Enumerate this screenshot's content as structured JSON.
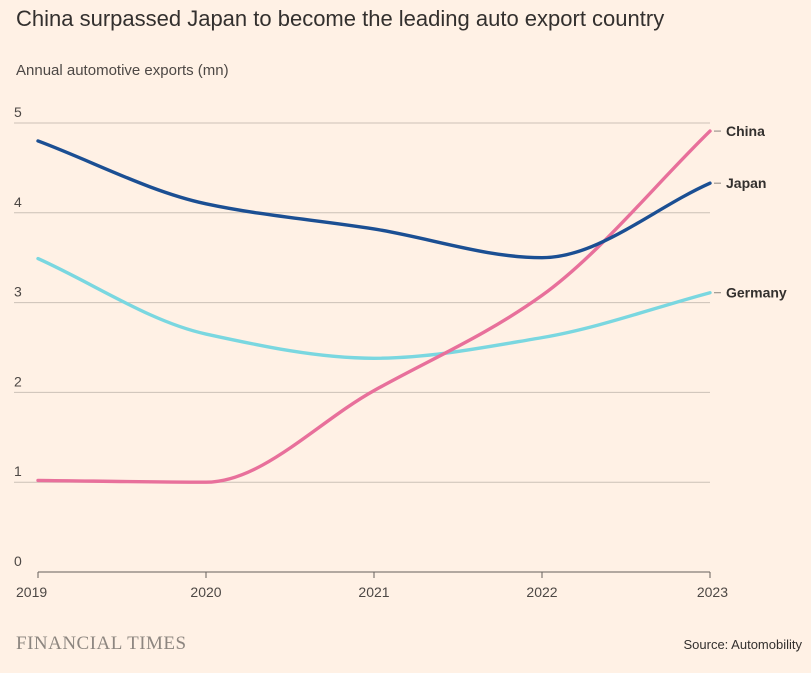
{
  "branding": {
    "logo_text": "FINANCIAL TIMES"
  },
  "source": "Source: Automobility",
  "colors": {
    "background": "#fff1e5",
    "grid": "#ccc1b7",
    "China": "#e8709b",
    "Japan": "#1b4f93",
    "Germany": "#7ad7e0"
  },
  "chart_data": {
    "type": "line",
    "title": "China surpassed Japan to become the leading auto export country",
    "subtitle": "Annual automotive exports (mn)",
    "xlabel": "",
    "ylabel": "Annual automotive exports (mn)",
    "x": [
      2019,
      2020,
      2021,
      2022,
      2023
    ],
    "x_tick_labels": [
      "2019",
      "2020",
      "2021",
      "2022",
      "2023"
    ],
    "y_ticks": [
      0,
      1,
      2,
      3,
      4,
      5
    ],
    "ylim": [
      0,
      5
    ],
    "grid": true,
    "legend": "inline-right",
    "series": [
      {
        "name": "China",
        "values": [
          1.02,
          1.0,
          2.02,
          3.08,
          4.91
        ]
      },
      {
        "name": "Japan",
        "values": [
          4.8,
          4.1,
          3.82,
          3.5,
          4.33
        ]
      },
      {
        "name": "Germany",
        "values": [
          3.49,
          2.65,
          2.38,
          2.61,
          3.11
        ]
      }
    ]
  }
}
